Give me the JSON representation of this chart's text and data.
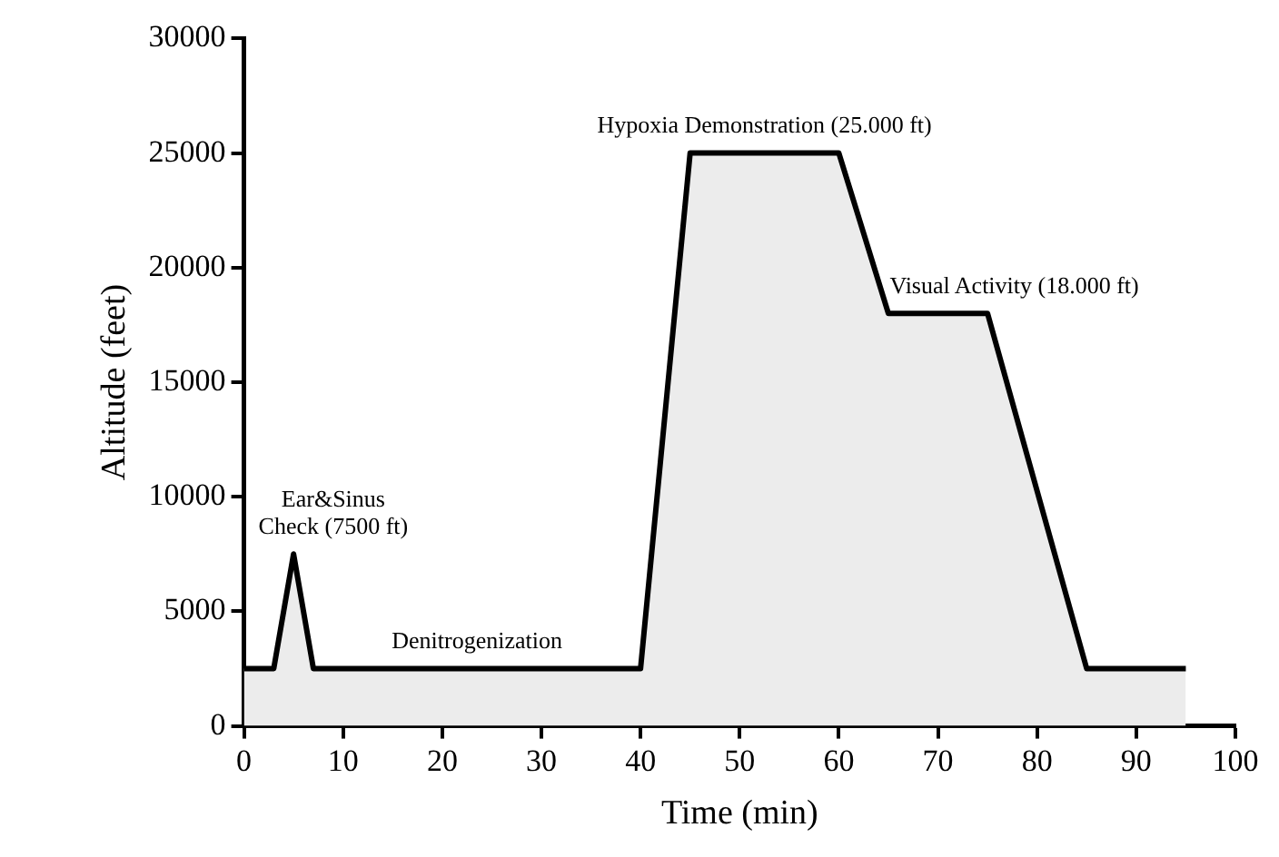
{
  "chart_data": {
    "type": "area",
    "xlabel": "Time (min)",
    "ylabel": "Altitude (feet)",
    "x": [
      0,
      3,
      5,
      7,
      40,
      45,
      60,
      65,
      75,
      85,
      95
    ],
    "series": [
      {
        "color": "#000000",
        "values": [
          2500,
          2500,
          7500,
          2500,
          2500,
          25000,
          25000,
          18000,
          18000,
          2500,
          2500
        ]
      }
    ],
    "xlim": [
      0,
      100
    ],
    "xticks": [
      0,
      10,
      20,
      30,
      40,
      50,
      60,
      70,
      80,
      90,
      100
    ],
    "ylim": [
      0,
      30000
    ],
    "yticks": [
      0,
      5000,
      10000,
      15000,
      20000,
      25000,
      30000
    ],
    "grid": false,
    "legend": false,
    "marker": "none",
    "line_style": "solid",
    "annotations": [
      {
        "text": "Ear&Sinus\nCheck (7500 ft)",
        "x": 5,
        "y": 7500
      },
      {
        "text": "Denitrogenization",
        "x": 23.5,
        "y": 2500
      },
      {
        "text": "Hypoxia Demonstration (25.000 ft)",
        "x": 52.5,
        "y": 25000
      },
      {
        "text": "Visual Activity (18.000 ft)",
        "x": 70,
        "y": 18000
      }
    ]
  }
}
